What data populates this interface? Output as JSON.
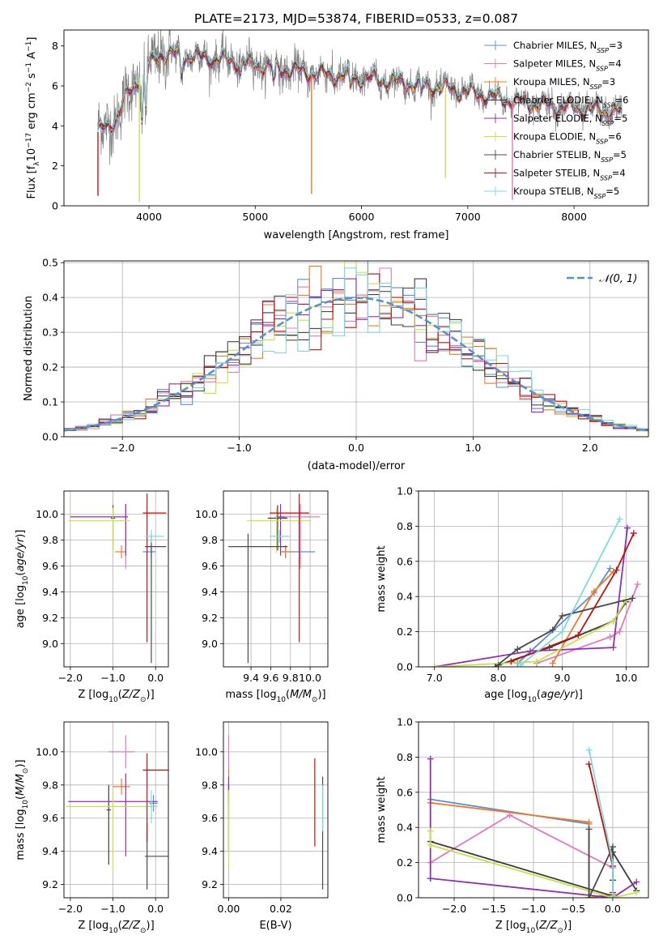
{
  "figure": {
    "title": "PLATE=2173, MJD=53874, FIBERID=0533, z=0.087"
  },
  "colors": {
    "Chabrier MILES": "#5b8fd0",
    "Salpeter MILES": "#e07ab8",
    "Kroupa MILES": "#f07a26",
    "Chabrier ELODIE": "#3c3c3c",
    "Salpeter ELODIE": "#8e30b0",
    "Kroupa ELODIE": "#c8e04a",
    "Chabrier STELIB": "#4a4a4a",
    "Salpeter STELIB": "#b81414",
    "Kroupa STELIB": "#7fd8e0",
    "data": "#808080"
  },
  "chart_data": [
    {
      "id": "spectrum",
      "type": "line",
      "xlabel": "wavelength [Angstrom, rest frame]",
      "ylabel": "Flux [f_λ 10^-17 erg cm^-2 s^-1 A^-1]",
      "xlim": [
        3200,
        8700
      ],
      "ylim": [
        0,
        8.8
      ],
      "xticks": [
        4000,
        5000,
        6000,
        7000,
        8000
      ],
      "yticks": [
        0,
        2,
        4,
        6,
        8
      ],
      "legend_position": "top-right",
      "legend": [
        {
          "model": "Chabrier MILES",
          "nssp": "3"
        },
        {
          "model": "Salpeter MILES",
          "nssp": "4"
        },
        {
          "model": "Kroupa MILES",
          "nssp": "3"
        },
        {
          "model": "Chabrier ELODIE",
          "nssp": "6"
        },
        {
          "model": "Salpeter ELODIE",
          "nssp": "5"
        },
        {
          "model": "Kroupa ELODIE",
          "nssp": "6"
        },
        {
          "model": "Chabrier STELIB",
          "nssp": "5"
        },
        {
          "model": "Salpeter STELIB",
          "nssp": "4"
        },
        {
          "model": "Kroupa STELIB",
          "nssp": "5"
        }
      ],
      "continuum_knots": [
        [
          3520,
          3.7
        ],
        [
          3700,
          4.4
        ],
        [
          3800,
          5.6
        ],
        [
          3950,
          6.7
        ],
        [
          4000,
          7.0
        ],
        [
          4100,
          7.6
        ],
        [
          4400,
          7.5
        ],
        [
          4700,
          7.3
        ],
        [
          5000,
          7.1
        ],
        [
          5300,
          6.8
        ],
        [
          5600,
          6.6
        ],
        [
          6000,
          6.4
        ],
        [
          6500,
          6.1
        ],
        [
          6800,
          5.9
        ],
        [
          7100,
          5.6
        ],
        [
          7500,
          5.2
        ],
        [
          8000,
          4.9
        ],
        [
          8450,
          4.7
        ]
      ],
      "dips": [
        [
          3935,
          2.4
        ],
        [
          3970,
          2.0
        ],
        [
          4305,
          1.0
        ],
        [
          4862,
          0.6
        ],
        [
          5175,
          0.8
        ],
        [
          5895,
          0.6
        ],
        [
          6563,
          0.5
        ]
      ],
      "spikes": [
        [
          3520,
          0.5
        ],
        [
          3910,
          0.2
        ],
        [
          5530,
          0.6
        ],
        [
          6790,
          1.4
        ],
        [
          7420,
          0.3
        ]
      ]
    },
    {
      "id": "residuals",
      "type": "histogram",
      "xlabel": "(data-model)/error",
      "ylabel": "Normed distribution",
      "xlim": [
        -2.5,
        2.5
      ],
      "ylim": [
        0,
        0.505
      ],
      "xticks": [
        -2,
        -1,
        0,
        1,
        2
      ],
      "yticks": [
        0.0,
        0.1,
        0.2,
        0.3,
        0.4,
        0.5
      ],
      "grid": true,
      "bin_width": 0.1,
      "normal_curve_label": "𝒩(0, 1)",
      "legend_position": "top-right"
    },
    {
      "id": "age-vs-Z",
      "type": "scatter",
      "xlabel": "Z [log10(Z/Z⊙)]",
      "ylabel": "age [log10(age/yr)]",
      "xlim": [
        -2.15,
        0.3
      ],
      "ylim": [
        8.82,
        10.18
      ],
      "xticks": [
        -2,
        -1,
        0
      ],
      "yticks": [
        9.0,
        9.2,
        9.4,
        9.6,
        9.8,
        10.0
      ],
      "grid": true,
      "points": [
        {
          "model": "Chabrier MILES",
          "x": -0.1,
          "xerr": [
            0.2,
            0.1
          ],
          "y": 9.71,
          "yerr": [
            0.05,
            0.05
          ]
        },
        {
          "model": "Salpeter MILES",
          "x": -0.7,
          "xerr": [
            0.05,
            0.05
          ],
          "y": 9.98,
          "yerr": [
            0.4,
            0.1
          ]
        },
        {
          "model": "Kroupa MILES",
          "x": -0.8,
          "xerr": [
            0.15,
            0.1
          ],
          "y": 9.71,
          "yerr": [
            0.05,
            0.05
          ]
        },
        {
          "model": "Chabrier ELODIE",
          "x": -1.0,
          "xerr": [
            0.05,
            0.05
          ],
          "y": 9.97,
          "yerr": [
            0.25,
            0.1
          ]
        },
        {
          "model": "Salpeter ELODIE",
          "x": -0.7,
          "xerr": [
            1.3,
            0.05
          ],
          "y": 9.98,
          "yerr": [
            0.3,
            0.1
          ]
        },
        {
          "model": "Kroupa ELODIE",
          "x": -1.0,
          "xerr": [
            1.05,
            0.4
          ],
          "y": 9.95,
          "yerr": [
            0.25,
            0.1
          ]
        },
        {
          "model": "Chabrier STELIB",
          "x": -0.1,
          "xerr": [
            0.15,
            0.35
          ],
          "y": 9.75,
          "yerr": [
            0.9,
            0.1
          ]
        },
        {
          "model": "Salpeter STELIB",
          "x": -0.2,
          "xerr": [
            0.1,
            0.45
          ],
          "y": 10.01,
          "yerr": [
            1.0,
            0.15
          ]
        },
        {
          "model": "Kroupa STELIB",
          "x": -0.1,
          "xerr": [
            0.15,
            0.3
          ],
          "y": 9.83,
          "yerr": [
            0.05,
            0.05
          ]
        }
      ]
    },
    {
      "id": "age-vs-mass",
      "type": "scatter",
      "xlabel": "mass [log10(M/M⊙)]",
      "ylabel": "",
      "xlim": [
        9.12,
        10.18
      ],
      "ylim": [
        8.82,
        10.18
      ],
      "xticks": [
        9.4,
        9.6,
        9.8,
        10.0
      ],
      "yticks": [
        9.0,
        9.2,
        9.4,
        9.6,
        9.8,
        10.0
      ],
      "grid": true,
      "points": [
        {
          "model": "Chabrier MILES",
          "x": 9.75,
          "xerr": [
            0.05,
            0.3
          ],
          "y": 9.71,
          "yerr": [
            0.05,
            0.05
          ]
        },
        {
          "model": "Salpeter MILES",
          "x": 9.9,
          "xerr": [
            0.15,
            0.2
          ],
          "y": 9.98,
          "yerr": [
            0.4,
            0.1
          ]
        },
        {
          "model": "Kroupa MILES",
          "x": 9.75,
          "xerr": [
            0.05,
            0.05
          ],
          "y": 9.71,
          "yerr": [
            0.05,
            0.05
          ]
        },
        {
          "model": "Chabrier ELODIE",
          "x": 9.67,
          "xerr": [
            0.1,
            0.1
          ],
          "y": 9.97,
          "yerr": [
            0.25,
            0.1
          ]
        },
        {
          "model": "Salpeter ELODIE",
          "x": 9.7,
          "xerr": [
            0.05,
            0.05
          ],
          "y": 9.98,
          "yerr": [
            0.3,
            0.1
          ]
        },
        {
          "model": "Kroupa ELODIE",
          "x": 9.66,
          "xerr": [
            0.3,
            0.35
          ],
          "y": 9.95,
          "yerr": [
            0.25,
            0.1
          ]
        },
        {
          "model": "Chabrier STELIB",
          "x": 9.37,
          "xerr": [
            0.2,
            0.4
          ],
          "y": 9.75,
          "yerr": [
            0.9,
            0.1
          ]
        },
        {
          "model": "Salpeter STELIB",
          "x": 9.89,
          "xerr": [
            0.3,
            0.1
          ],
          "y": 10.01,
          "yerr": [
            1.0,
            0.15
          ]
        },
        {
          "model": "Kroupa STELIB",
          "x": 9.69,
          "xerr": [
            0.1,
            0.1
          ],
          "y": 9.83,
          "yerr": [
            0.05,
            0.05
          ]
        }
      ]
    },
    {
      "id": "massweight-vs-age",
      "type": "line",
      "xlabel": "age [log10(age/yr)]",
      "ylabel": "mass weight",
      "xlim": [
        6.75,
        10.35
      ],
      "ylim": [
        0,
        1
      ],
      "xticks": [
        7,
        8,
        9,
        10
      ],
      "yticks": [
        0.0,
        0.2,
        0.4,
        0.6,
        0.8,
        1.0
      ],
      "grid": true,
      "series": [
        {
          "model": "Chabrier MILES",
          "x": [
            8.3,
            9.5,
            9.75
          ],
          "y": [
            0.02,
            0.42,
            0.56
          ]
        },
        {
          "model": "Salpeter MILES",
          "x": [
            8.6,
            9.75,
            9.9,
            10.18
          ],
          "y": [
            0.02,
            0.17,
            0.2,
            0.47
          ]
        },
        {
          "model": "Kroupa MILES",
          "x": [
            8.85,
            9.5,
            9.8
          ],
          "y": [
            0.02,
            0.43,
            0.54
          ]
        },
        {
          "model": "Chabrier ELODIE",
          "x": [
            8.0,
            8.8,
            9.8,
            10.0
          ],
          "y": [
            0.01,
            0.11,
            0.26,
            0.37
          ]
        },
        {
          "model": "Salpeter ELODIE",
          "x": [
            7.0,
            8.5,
            9.8,
            10.02
          ],
          "y": [
            0.0,
            0.09,
            0.11,
            0.79
          ]
        },
        {
          "model": "Kroupa ELODIE",
          "x": [
            7.0,
            8.6,
            9.8,
            10.0
          ],
          "y": [
            0.0,
            0.03,
            0.26,
            0.38
          ]
        },
        {
          "model": "Chabrier STELIB",
          "x": [
            7.95,
            8.3,
            8.85,
            9.0,
            10.1
          ],
          "y": [
            0.0,
            0.1,
            0.21,
            0.29,
            0.39
          ]
        },
        {
          "model": "Salpeter STELIB",
          "x": [
            8.2,
            9.25,
            9.85,
            10.12
          ],
          "y": [
            0.03,
            0.18,
            0.55,
            0.76
          ]
        },
        {
          "model": "Kroupa STELIB",
          "x": [
            8.35,
            9.0,
            9.9
          ],
          "y": [
            0.01,
            0.2,
            0.84
          ]
        }
      ]
    },
    {
      "id": "mass-vs-Z",
      "type": "scatter",
      "xlabel": "Z [log10(Z/Z⊙)]",
      "ylabel": "mass [log10(M/M⊙)]",
      "xlim": [
        -2.15,
        0.3
      ],
      "ylim": [
        9.12,
        10.18
      ],
      "xticks": [
        -2,
        -1,
        0
      ],
      "yticks": [
        9.2,
        9.4,
        9.6,
        9.8,
        10.0
      ],
      "grid": true,
      "points": [
        {
          "model": "Chabrier MILES",
          "x": -0.05,
          "xerr": [
            0.1,
            0.1
          ],
          "y": 9.69,
          "yerr": [
            0.05,
            0.05
          ]
        },
        {
          "model": "Salpeter MILES",
          "x": -0.7,
          "xerr": [
            0.4,
            0.2
          ],
          "y": 10.0,
          "yerr": [
            0.1,
            0.1
          ]
        },
        {
          "model": "Kroupa MILES",
          "x": -0.8,
          "xerr": [
            0.2,
            0.2
          ],
          "y": 9.79,
          "yerr": [
            0.05,
            0.05
          ]
        },
        {
          "model": "Chabrier ELODIE",
          "x": -1.1,
          "xerr": [
            0.05,
            0.05
          ],
          "y": 9.65,
          "yerr": [
            0.33,
            0.15
          ]
        },
        {
          "model": "Salpeter ELODIE",
          "x": -0.7,
          "xerr": [
            1.35,
            0.75
          ],
          "y": 9.7,
          "yerr": [
            0.33,
            0.17
          ]
        },
        {
          "model": "Kroupa ELODIE",
          "x": -1.0,
          "xerr": [
            1.1,
            1.05
          ],
          "y": 9.67,
          "yerr": [
            0.4,
            0.1
          ]
        },
        {
          "model": "Chabrier STELIB",
          "x": -0.2,
          "xerr": [
            0.05,
            0.5
          ],
          "y": 9.37,
          "yerr": [
            0.2,
            0.2
          ]
        },
        {
          "model": "Salpeter STELIB",
          "x": -0.2,
          "xerr": [
            0.1,
            0.5
          ],
          "y": 9.89,
          "yerr": [
            0.43,
            0.1
          ]
        },
        {
          "model": "Kroupa STELIB",
          "x": -0.1,
          "xerr": [
            0.1,
            0.1
          ],
          "y": 9.67,
          "yerr": [
            0.1,
            0.1
          ]
        }
      ]
    },
    {
      "id": "mass-vs-EBV",
      "type": "scatter",
      "xlabel": "E(B-V)",
      "ylabel": "",
      "xlim": [
        -0.002,
        0.038
      ],
      "ylim": [
        9.12,
        10.18
      ],
      "xticks": [
        0.0,
        0.02
      ],
      "yticks": [
        9.2,
        9.4,
        9.6,
        9.8,
        10.0
      ],
      "grid": true,
      "points": [
        {
          "model": "Chabrier MILES",
          "x": 0.0,
          "xerr": [
            0,
            0
          ],
          "y": 9.7,
          "yerr": [
            0.1,
            0.1
          ]
        },
        {
          "model": "Salpeter MILES",
          "x": 0.0,
          "xerr": [
            0,
            0
          ],
          "y": 10.0,
          "yerr": [
            0.12,
            0.1
          ]
        },
        {
          "model": "Kroupa MILES",
          "x": 0.0,
          "xerr": [
            0,
            0
          ],
          "y": 9.79,
          "yerr": [
            0.1,
            0.1
          ]
        },
        {
          "model": "Chabrier ELODIE",
          "x": 0.0,
          "xerr": [
            0,
            0
          ],
          "y": 9.6,
          "yerr": [
            0.2,
            0.2
          ]
        },
        {
          "model": "Salpeter ELODIE",
          "x": 0.0,
          "xerr": [
            0,
            0
          ],
          "y": 9.8,
          "yerr": [
            0.05,
            0.05
          ]
        },
        {
          "model": "Kroupa ELODIE",
          "x": 0.0,
          "xerr": [
            0,
            0
          ],
          "y": 9.5,
          "yerr": [
            0.2,
            0.27
          ]
        },
        {
          "model": "Chabrier STELIB",
          "x": 0.036,
          "xerr": [
            0,
            0
          ],
          "y": 9.5,
          "yerr": [
            0.33,
            0.35
          ]
        },
        {
          "model": "Salpeter STELIB",
          "x": 0.033,
          "xerr": [
            0,
            0
          ],
          "y": 9.7,
          "yerr": [
            0.27,
            0.26
          ]
        },
        {
          "model": "Kroupa STELIB",
          "x": 0.036,
          "xerr": [
            0,
            0
          ],
          "y": 9.66,
          "yerr": [
            0.14,
            0.14
          ]
        }
      ]
    },
    {
      "id": "massweight-vs-Z",
      "type": "line",
      "xlabel": "Z [log10(Z/Z⊙)]",
      "ylabel": "mass weight",
      "xlim": [
        -2.45,
        0.45
      ],
      "ylim": [
        0,
        1
      ],
      "xticks": [
        -2.0,
        -1.5,
        -1.0,
        -0.5,
        0.0
      ],
      "yticks": [
        0.0,
        0.2,
        0.4,
        0.6,
        0.8,
        1.0
      ],
      "grid": true,
      "series": [
        {
          "model": "Chabrier MILES",
          "x": [
            -2.3,
            -0.3,
            -0.3,
            0.0
          ],
          "y": [
            0.56,
            0.42,
            0.0,
            0.02
          ]
        },
        {
          "model": "Salpeter MILES",
          "x": [
            -2.3,
            -1.3,
            0.0,
            0.0
          ],
          "y": [
            0.2,
            0.47,
            0.17,
            0.0
          ]
        },
        {
          "model": "Kroupa MILES",
          "x": [
            -2.3,
            -0.3,
            -0.3,
            0.0
          ],
          "y": [
            0.54,
            0.43,
            0.0,
            0.02
          ]
        },
        {
          "model": "Chabrier ELODIE",
          "x": [
            -2.3,
            0.0,
            0.0,
            0.3
          ],
          "y": [
            0.32,
            0.01,
            0.26,
            0.04
          ]
        },
        {
          "model": "Salpeter ELODIE",
          "x": [
            -2.3,
            -2.3,
            -2.3,
            0.0,
            0.3
          ],
          "y": [
            0.79,
            0.11,
            0.11,
            0.0,
            0.09
          ]
        },
        {
          "model": "Kroupa ELODIE",
          "x": [
            -2.3,
            -2.3,
            0.0,
            0.3
          ],
          "y": [
            0.38,
            0.3,
            0.0,
            0.03
          ]
        },
        {
          "model": "Chabrier STELIB",
          "x": [
            -0.3,
            -0.3,
            0.0,
            0.0
          ],
          "y": [
            0.39,
            0.0,
            0.29,
            0.1
          ]
        },
        {
          "model": "Salpeter STELIB",
          "x": [
            -0.3,
            0.0,
            0.0
          ],
          "y": [
            0.76,
            0.18,
            0.03
          ]
        },
        {
          "model": "Kroupa STELIB",
          "x": [
            -0.3,
            0.0,
            0.0
          ],
          "y": [
            0.84,
            0.2,
            0.01
          ]
        }
      ]
    }
  ]
}
